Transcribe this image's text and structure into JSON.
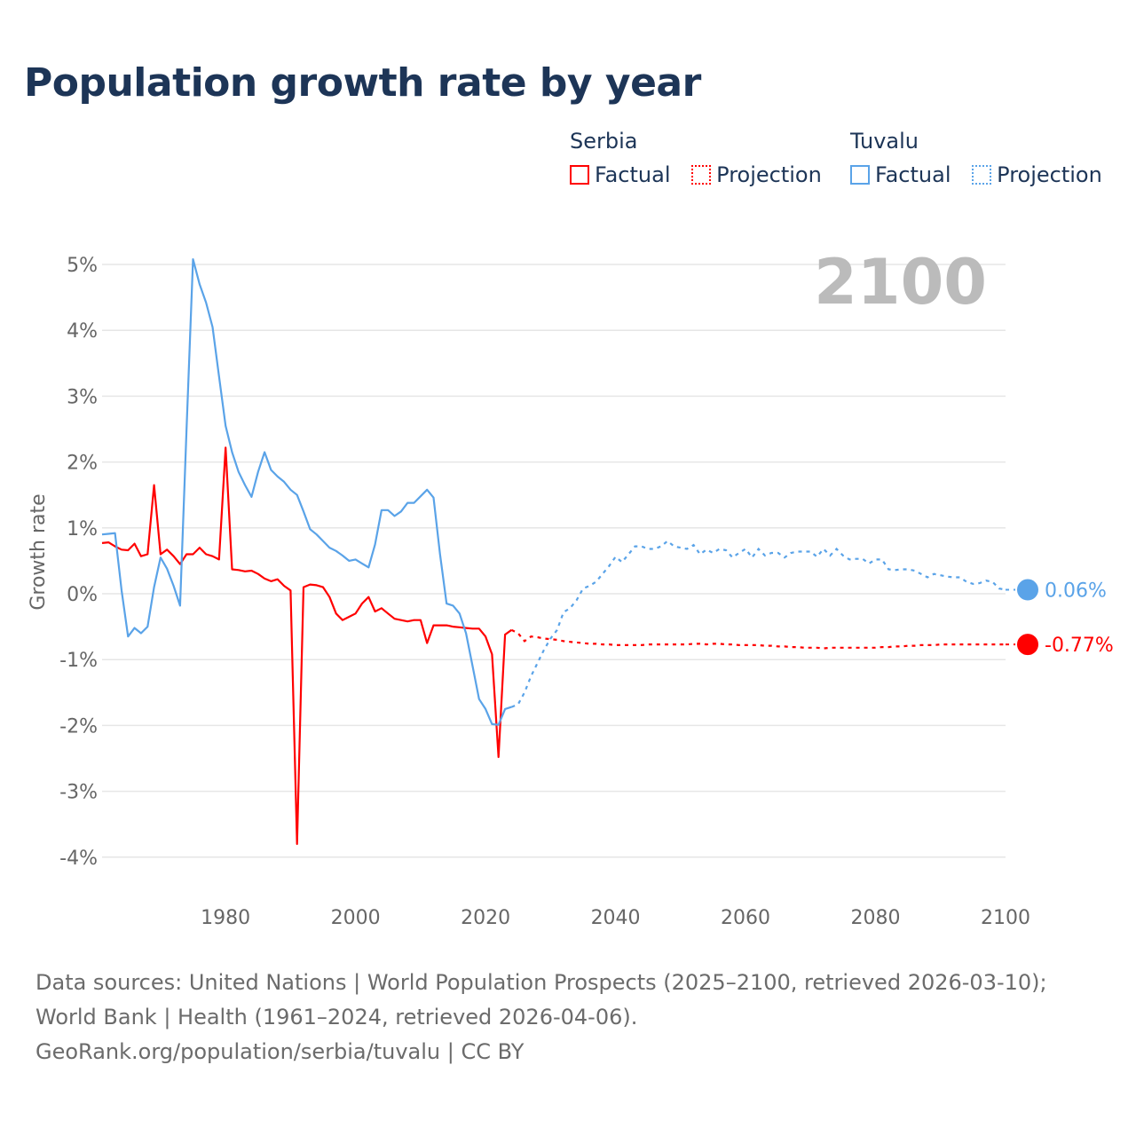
{
  "title": "Population growth rate by year",
  "legend": {
    "groups": [
      {
        "name": "Serbia",
        "color": "#ff0000",
        "factual": "Factual",
        "projection": "Projection"
      },
      {
        "name": "Tuvalu",
        "color": "#5aa3e8",
        "factual": "Factual",
        "projection": "Projection"
      }
    ]
  },
  "footer": {
    "sources": "Data sources: United Nations | World Population Prospects (2025–2100, retrieved 2026-03-10); World Bank | Health (1961–2024, retrieved 2026-04-06).",
    "credit": "GeoRank.org/population/serbia/tuvalu | CC BY"
  },
  "chart_data": {
    "type": "line",
    "title": "Population growth rate by year",
    "ylabel": "Growth rate",
    "xlabel": "",
    "year_watermark": "2100",
    "xlim": [
      1961,
      2100
    ],
    "ylim": [
      -4,
      5
    ],
    "x_ticks": [
      1980,
      2000,
      2020,
      2040,
      2060,
      2080,
      2100
    ],
    "y_ticks": [
      5,
      4,
      3,
      2,
      1,
      0,
      -1,
      -2,
      -3,
      -4
    ],
    "y_tick_labels": [
      "5%",
      "4%",
      "3%",
      "2%",
      "1%",
      "0%",
      "-1%",
      "-2%",
      "-3%",
      "-4%"
    ],
    "grid": true,
    "series": [
      {
        "name": "Serbia",
        "color": "#ff0000",
        "end_label": "-0.77%",
        "factual_start": 1961,
        "factual": [
          0.77,
          0.78,
          0.72,
          0.67,
          0.66,
          0.76,
          0.57,
          0.6,
          1.65,
          0.6,
          0.67,
          0.57,
          0.45,
          0.6,
          0.6,
          0.7,
          0.6,
          0.57,
          0.52,
          2.22,
          0.37,
          0.36,
          0.34,
          0.35,
          0.3,
          0.23,
          0.19,
          0.22,
          0.12,
          0.05,
          -3.8,
          0.1,
          0.14,
          0.13,
          0.1,
          -0.05,
          -0.3,
          -0.4,
          -0.35,
          -0.3,
          -0.15,
          -0.05,
          -0.27,
          -0.22,
          -0.3,
          -0.38,
          -0.4,
          -0.42,
          -0.4,
          -0.4,
          -0.75,
          -0.48,
          -0.48,
          -0.48,
          -0.5,
          -0.51,
          -0.52,
          -0.53,
          -0.53,
          -0.65,
          -0.92,
          -2.48,
          -0.62,
          -0.55
        ],
        "projection_start": 2024,
        "projection": [
          -0.55,
          -0.6,
          -0.72,
          -0.65,
          -0.66,
          -0.68,
          -0.69,
          -0.7,
          -0.72,
          -0.73,
          -0.74,
          -0.75,
          -0.76,
          -0.76,
          -0.77,
          -0.77,
          -0.78,
          -0.78,
          -0.78,
          -0.78,
          -0.78,
          -0.77,
          -0.77,
          -0.77,
          -0.77,
          -0.77,
          -0.77,
          -0.77,
          -0.76,
          -0.76,
          -0.77,
          -0.76,
          -0.76,
          -0.77,
          -0.77,
          -0.78,
          -0.78,
          -0.78,
          -0.78,
          -0.79,
          -0.79,
          -0.8,
          -0.8,
          -0.81,
          -0.81,
          -0.82,
          -0.82,
          -0.82,
          -0.83,
          -0.82,
          -0.82,
          -0.82,
          -0.82,
          -0.82,
          -0.82,
          -0.82,
          -0.82,
          -0.81,
          -0.81,
          -0.8,
          -0.8,
          -0.79,
          -0.79,
          -0.78,
          -0.78,
          -0.78,
          -0.77,
          -0.77,
          -0.77,
          -0.77,
          -0.77,
          -0.77,
          -0.77,
          -0.77,
          -0.77,
          -0.77,
          -0.77
        ]
      },
      {
        "name": "Tuvalu",
        "color": "#5aa3e8",
        "end_label": "0.06%",
        "factual_start": 1961,
        "factual": [
          0.9,
          0.91,
          0.92,
          0.05,
          -0.65,
          -0.52,
          -0.6,
          -0.5,
          0.1,
          0.55,
          0.38,
          0.12,
          -0.18,
          2.5,
          5.08,
          4.7,
          4.42,
          4.05,
          3.3,
          2.55,
          2.15,
          1.85,
          1.65,
          1.47,
          1.85,
          2.15,
          1.88,
          1.78,
          1.7,
          1.58,
          1.5,
          1.25,
          0.98,
          0.9,
          0.8,
          0.7,
          0.65,
          0.58,
          0.5,
          0.52,
          0.46,
          0.4,
          0.75,
          1.27,
          1.27,
          1.18,
          1.25,
          1.38,
          1.38,
          1.48,
          1.58,
          1.46,
          0.6,
          -0.15,
          -0.18,
          -0.3,
          -0.6,
          -1.1,
          -1.6,
          -1.75,
          -1.98,
          -1.99,
          -1.75,
          -1.72
        ],
        "projection_start": 2024,
        "projection": [
          -1.72,
          -1.68,
          -1.5,
          -1.25,
          -1.05,
          -0.85,
          -0.68,
          -0.55,
          -0.28,
          -0.22,
          -0.1,
          0.08,
          0.12,
          0.18,
          0.3,
          0.42,
          0.56,
          0.48,
          0.6,
          0.72,
          0.72,
          0.68,
          0.68,
          0.72,
          0.8,
          0.72,
          0.7,
          0.68,
          0.74,
          0.6,
          0.67,
          0.62,
          0.68,
          0.66,
          0.55,
          0.62,
          0.68,
          0.55,
          0.68,
          0.58,
          0.62,
          0.62,
          0.55,
          0.62,
          0.64,
          0.64,
          0.64,
          0.56,
          0.68,
          0.58,
          0.68,
          0.58,
          0.52,
          0.53,
          0.53,
          0.46,
          0.52,
          0.52,
          0.37,
          0.36,
          0.37,
          0.37,
          0.35,
          0.3,
          0.25,
          0.3,
          0.28,
          0.26,
          0.25,
          0.25,
          0.18,
          0.15,
          0.16,
          0.2,
          0.18,
          0.08,
          0.06
        ]
      }
    ]
  }
}
